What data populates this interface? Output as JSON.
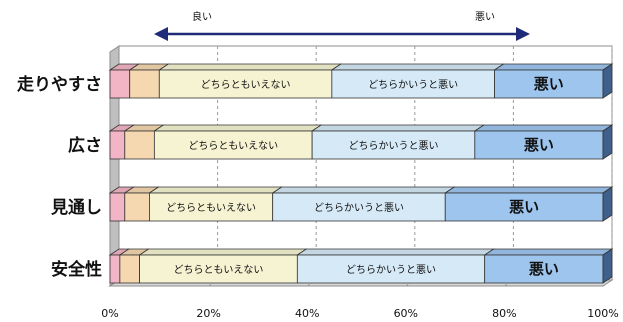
{
  "chart_data": {
    "type": "bar",
    "orientation": "horizontal",
    "stacked": true,
    "stacked_percent": true,
    "categories": [
      "走りやすさ",
      "広さ",
      "見通し",
      "安全性"
    ],
    "series": [
      {
        "values": [
          4,
          3,
          3,
          2
        ],
        "color": "#f2b5c6"
      },
      {
        "values": [
          6,
          6,
          5,
          4
        ],
        "color": "#f5d7b0"
      },
      {
        "name": "どちらともいえない",
        "values": [
          35,
          32,
          25,
          32
        ],
        "color": "#f5f3d2"
      },
      {
        "name": "どちらかいうと悪い",
        "values": [
          33,
          33,
          35,
          38
        ],
        "color": "#d6e9f7"
      },
      {
        "name": "悪い",
        "values": [
          22,
          26,
          32,
          24
        ],
        "color": "#9ec5ee"
      }
    ],
    "xlim": [
      0,
      100
    ],
    "x_ticks": [
      "0%",
      "20%",
      "40%",
      "60%",
      "80%",
      "100%"
    ],
    "grid": true,
    "arrow": {
      "left_label": "良い",
      "right_label": "悪い"
    }
  }
}
